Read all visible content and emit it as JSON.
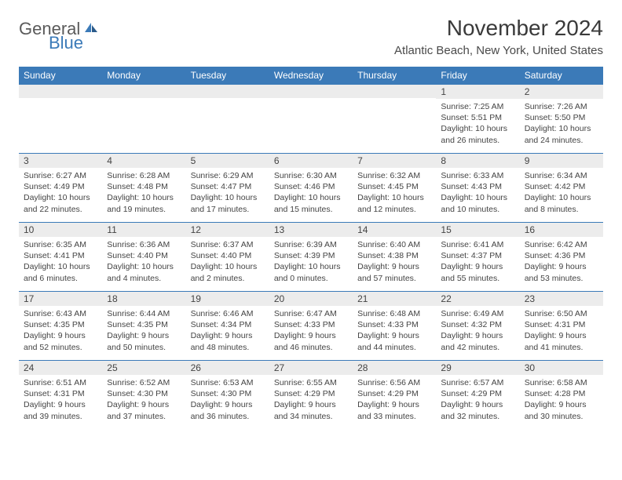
{
  "logo": {
    "text1": "General",
    "text2": "Blue"
  },
  "title": "November 2024",
  "location": "Atlantic Beach, New York, United States",
  "colors": {
    "header_bg": "#3b7ab8",
    "header_text": "#ffffff",
    "daynum_bg": "#ececec",
    "border": "#3b7ab8",
    "text": "#444444",
    "logo_gray": "#5a5a5a",
    "logo_blue": "#3b7ab8"
  },
  "fonts": {
    "title_size": 28,
    "location_size": 15,
    "dayheader_size": 12,
    "daynum_size": 12,
    "daytext_size": 10.5
  },
  "day_headers": [
    "Sunday",
    "Monday",
    "Tuesday",
    "Wednesday",
    "Thursday",
    "Friday",
    "Saturday"
  ],
  "weeks": [
    [
      {
        "num": "",
        "lines": []
      },
      {
        "num": "",
        "lines": []
      },
      {
        "num": "",
        "lines": []
      },
      {
        "num": "",
        "lines": []
      },
      {
        "num": "",
        "lines": []
      },
      {
        "num": "1",
        "lines": [
          "Sunrise: 7:25 AM",
          "Sunset: 5:51 PM",
          "Daylight: 10 hours",
          "and 26 minutes."
        ]
      },
      {
        "num": "2",
        "lines": [
          "Sunrise: 7:26 AM",
          "Sunset: 5:50 PM",
          "Daylight: 10 hours",
          "and 24 minutes."
        ]
      }
    ],
    [
      {
        "num": "3",
        "lines": [
          "Sunrise: 6:27 AM",
          "Sunset: 4:49 PM",
          "Daylight: 10 hours",
          "and 22 minutes."
        ]
      },
      {
        "num": "4",
        "lines": [
          "Sunrise: 6:28 AM",
          "Sunset: 4:48 PM",
          "Daylight: 10 hours",
          "and 19 minutes."
        ]
      },
      {
        "num": "5",
        "lines": [
          "Sunrise: 6:29 AM",
          "Sunset: 4:47 PM",
          "Daylight: 10 hours",
          "and 17 minutes."
        ]
      },
      {
        "num": "6",
        "lines": [
          "Sunrise: 6:30 AM",
          "Sunset: 4:46 PM",
          "Daylight: 10 hours",
          "and 15 minutes."
        ]
      },
      {
        "num": "7",
        "lines": [
          "Sunrise: 6:32 AM",
          "Sunset: 4:45 PM",
          "Daylight: 10 hours",
          "and 12 minutes."
        ]
      },
      {
        "num": "8",
        "lines": [
          "Sunrise: 6:33 AM",
          "Sunset: 4:43 PM",
          "Daylight: 10 hours",
          "and 10 minutes."
        ]
      },
      {
        "num": "9",
        "lines": [
          "Sunrise: 6:34 AM",
          "Sunset: 4:42 PM",
          "Daylight: 10 hours",
          "and 8 minutes."
        ]
      }
    ],
    [
      {
        "num": "10",
        "lines": [
          "Sunrise: 6:35 AM",
          "Sunset: 4:41 PM",
          "Daylight: 10 hours",
          "and 6 minutes."
        ]
      },
      {
        "num": "11",
        "lines": [
          "Sunrise: 6:36 AM",
          "Sunset: 4:40 PM",
          "Daylight: 10 hours",
          "and 4 minutes."
        ]
      },
      {
        "num": "12",
        "lines": [
          "Sunrise: 6:37 AM",
          "Sunset: 4:40 PM",
          "Daylight: 10 hours",
          "and 2 minutes."
        ]
      },
      {
        "num": "13",
        "lines": [
          "Sunrise: 6:39 AM",
          "Sunset: 4:39 PM",
          "Daylight: 10 hours",
          "and 0 minutes."
        ]
      },
      {
        "num": "14",
        "lines": [
          "Sunrise: 6:40 AM",
          "Sunset: 4:38 PM",
          "Daylight: 9 hours",
          "and 57 minutes."
        ]
      },
      {
        "num": "15",
        "lines": [
          "Sunrise: 6:41 AM",
          "Sunset: 4:37 PM",
          "Daylight: 9 hours",
          "and 55 minutes."
        ]
      },
      {
        "num": "16",
        "lines": [
          "Sunrise: 6:42 AM",
          "Sunset: 4:36 PM",
          "Daylight: 9 hours",
          "and 53 minutes."
        ]
      }
    ],
    [
      {
        "num": "17",
        "lines": [
          "Sunrise: 6:43 AM",
          "Sunset: 4:35 PM",
          "Daylight: 9 hours",
          "and 52 minutes."
        ]
      },
      {
        "num": "18",
        "lines": [
          "Sunrise: 6:44 AM",
          "Sunset: 4:35 PM",
          "Daylight: 9 hours",
          "and 50 minutes."
        ]
      },
      {
        "num": "19",
        "lines": [
          "Sunrise: 6:46 AM",
          "Sunset: 4:34 PM",
          "Daylight: 9 hours",
          "and 48 minutes."
        ]
      },
      {
        "num": "20",
        "lines": [
          "Sunrise: 6:47 AM",
          "Sunset: 4:33 PM",
          "Daylight: 9 hours",
          "and 46 minutes."
        ]
      },
      {
        "num": "21",
        "lines": [
          "Sunrise: 6:48 AM",
          "Sunset: 4:33 PM",
          "Daylight: 9 hours",
          "and 44 minutes."
        ]
      },
      {
        "num": "22",
        "lines": [
          "Sunrise: 6:49 AM",
          "Sunset: 4:32 PM",
          "Daylight: 9 hours",
          "and 42 minutes."
        ]
      },
      {
        "num": "23",
        "lines": [
          "Sunrise: 6:50 AM",
          "Sunset: 4:31 PM",
          "Daylight: 9 hours",
          "and 41 minutes."
        ]
      }
    ],
    [
      {
        "num": "24",
        "lines": [
          "Sunrise: 6:51 AM",
          "Sunset: 4:31 PM",
          "Daylight: 9 hours",
          "and 39 minutes."
        ]
      },
      {
        "num": "25",
        "lines": [
          "Sunrise: 6:52 AM",
          "Sunset: 4:30 PM",
          "Daylight: 9 hours",
          "and 37 minutes."
        ]
      },
      {
        "num": "26",
        "lines": [
          "Sunrise: 6:53 AM",
          "Sunset: 4:30 PM",
          "Daylight: 9 hours",
          "and 36 minutes."
        ]
      },
      {
        "num": "27",
        "lines": [
          "Sunrise: 6:55 AM",
          "Sunset: 4:29 PM",
          "Daylight: 9 hours",
          "and 34 minutes."
        ]
      },
      {
        "num": "28",
        "lines": [
          "Sunrise: 6:56 AM",
          "Sunset: 4:29 PM",
          "Daylight: 9 hours",
          "and 33 minutes."
        ]
      },
      {
        "num": "29",
        "lines": [
          "Sunrise: 6:57 AM",
          "Sunset: 4:29 PM",
          "Daylight: 9 hours",
          "and 32 minutes."
        ]
      },
      {
        "num": "30",
        "lines": [
          "Sunrise: 6:58 AM",
          "Sunset: 4:28 PM",
          "Daylight: 9 hours",
          "and 30 minutes."
        ]
      }
    ]
  ]
}
